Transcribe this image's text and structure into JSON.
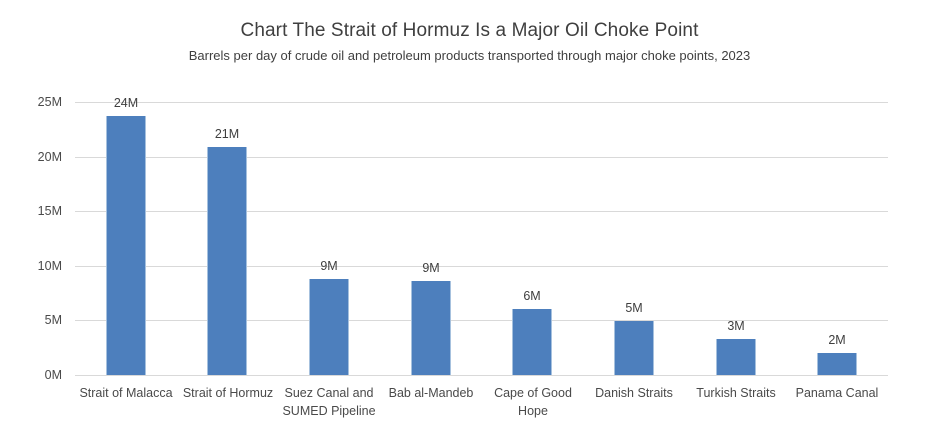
{
  "chart_data": {
    "type": "bar",
    "title": "Chart The Strait of Hormuz Is a Major Oil Choke Point",
    "subtitle": "Barrels per day of crude oil and petroleum products transported through major choke points, 2023",
    "categories": [
      "Strait of Malacca",
      "Strait of Hormuz",
      "Suez Canal and SUMED Pipeline",
      "Bab al-Mandeb",
      "Cape of Good Hope",
      "Danish Straits",
      "Turkish Straits",
      "Panama Canal"
    ],
    "values": [
      23.7,
      20.9,
      8.8,
      8.6,
      6.0,
      4.9,
      3.3,
      2.0
    ],
    "value_labels": [
      "24M",
      "21M",
      "9M",
      "9M",
      "6M",
      "5M",
      "3M",
      "2M"
    ],
    "xlabel": "",
    "ylabel": "",
    "ylim": [
      0,
      25
    ],
    "y_tick_values": [
      0,
      5,
      10,
      15,
      20,
      25
    ],
    "y_tick_labels": [
      "0M",
      "5M",
      "10M",
      "15M",
      "20M",
      "25M"
    ],
    "grid": true,
    "legend": false,
    "colors": {
      "bar_fill": "#4d7fbd",
      "bar_edge": "#a6c1de",
      "gridline": "#d9d9d9",
      "title_text": "#3f3f3f",
      "axis_text": "#4a4a4a"
    }
  }
}
